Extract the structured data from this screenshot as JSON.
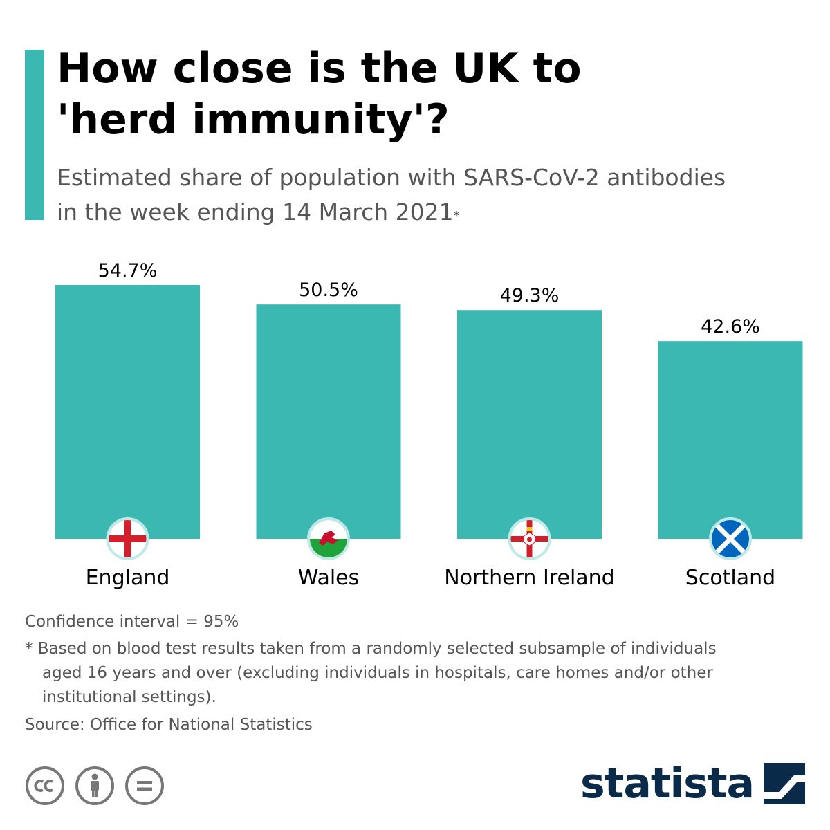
{
  "header": {
    "title_line1": "How close is the UK to",
    "title_line2": "'herd immunity'?",
    "subtitle_line1": "Estimated share of population with SARS-CoV-2 antibodies",
    "subtitle_line2": "in the week ending 14 March 2021",
    "subtitle_mark": "*"
  },
  "chart_data": {
    "type": "bar",
    "categories": [
      "England",
      "Wales",
      "Northern Ireland",
      "Scotland"
    ],
    "values": [
      54.7,
      50.5,
      49.3,
      42.6
    ],
    "value_labels": [
      "54.7%",
      "50.5%",
      "49.3%",
      "42.6%"
    ],
    "flags": [
      "england-flag-icon",
      "wales-flag-icon",
      "northern-ireland-flag-icon",
      "scotland-flag-icon"
    ],
    "ylim": [
      0,
      60
    ],
    "grid": false,
    "bar_color": "#3bb8b2"
  },
  "footer": {
    "confidence": "Confidence interval = 95%",
    "note": "* Based on blood test results taken from a randomly selected subsample of individuals aged 16 years and over (excluding individuals in hospitals, care homes and/or other institutional settings).",
    "source": "Source: Office for National Statistics"
  },
  "license_icons": [
    "cc-icon",
    "attribution-icon",
    "no-derivatives-icon"
  ],
  "brand": {
    "name": "statista"
  },
  "colors": {
    "accent": "#3bb8b2",
    "brand": "#0a2a4a",
    "muted_text": "#555555"
  }
}
